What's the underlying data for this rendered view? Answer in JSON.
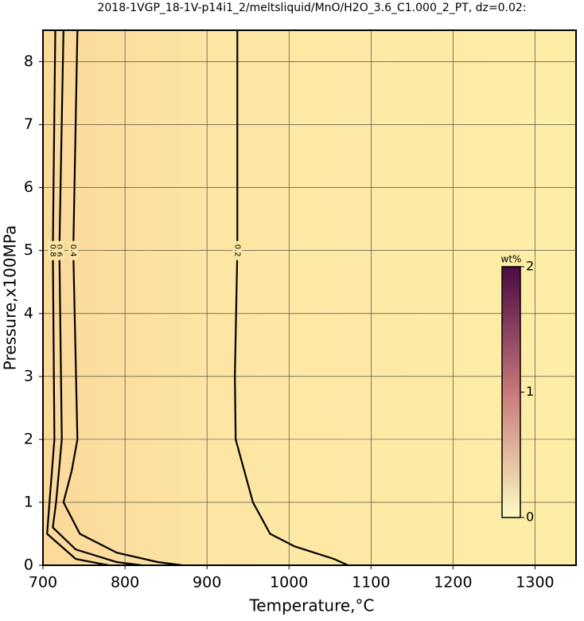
{
  "chart_data": {
    "type": "contour",
    "title": "2018-1VGP_18-1V-p14i1_2/meltsliquid/MnO/H2O_3.6_C1.000_2_PT, dz=0.02:",
    "x_label": "Temperature,°C",
    "y_label": "Pressure,x100MPa",
    "xlim": [
      700,
      1350
    ],
    "ylim": [
      0,
      8.5
    ],
    "xticks": [
      700,
      800,
      900,
      1000,
      1100,
      1200,
      1300
    ],
    "yticks": [
      0,
      1,
      2,
      3,
      4,
      5,
      6,
      7,
      8
    ],
    "grid": true,
    "contours": [
      {
        "level": 0.2,
        "x": [
          937,
          937,
          934,
          935,
          956,
          977,
          1007,
          1055,
          1072
        ],
        "y": [
          8.5,
          5,
          3,
          2,
          1,
          0.5,
          0.3,
          0.1,
          0
        ]
      },
      {
        "level": 0.4,
        "x": [
          742,
          737,
          742,
          735,
          725,
          745,
          790,
          840,
          870
        ],
        "y": [
          8.5,
          5,
          2,
          1.5,
          1,
          0.5,
          0.2,
          0.05,
          0
        ]
      },
      {
        "level": 0.6,
        "x": [
          725,
          720,
          723,
          716,
          712,
          740,
          790,
          820
        ],
        "y": [
          8.5,
          5,
          2,
          1,
          0.6,
          0.25,
          0.05,
          0
        ]
      },
      {
        "level": 0.8,
        "x": [
          715,
          712,
          714,
          708,
          705,
          740,
          780
        ],
        "y": [
          8.5,
          5,
          2,
          1,
          0.5,
          0.1,
          0
        ]
      }
    ],
    "colorbar": {
      "label": "wt%",
      "lim": [
        0,
        2
      ],
      "ticks": [
        0,
        1,
        2
      ],
      "colors": [
        "#fdfbc4",
        "#c8787a",
        "#4a0a44"
      ]
    }
  }
}
